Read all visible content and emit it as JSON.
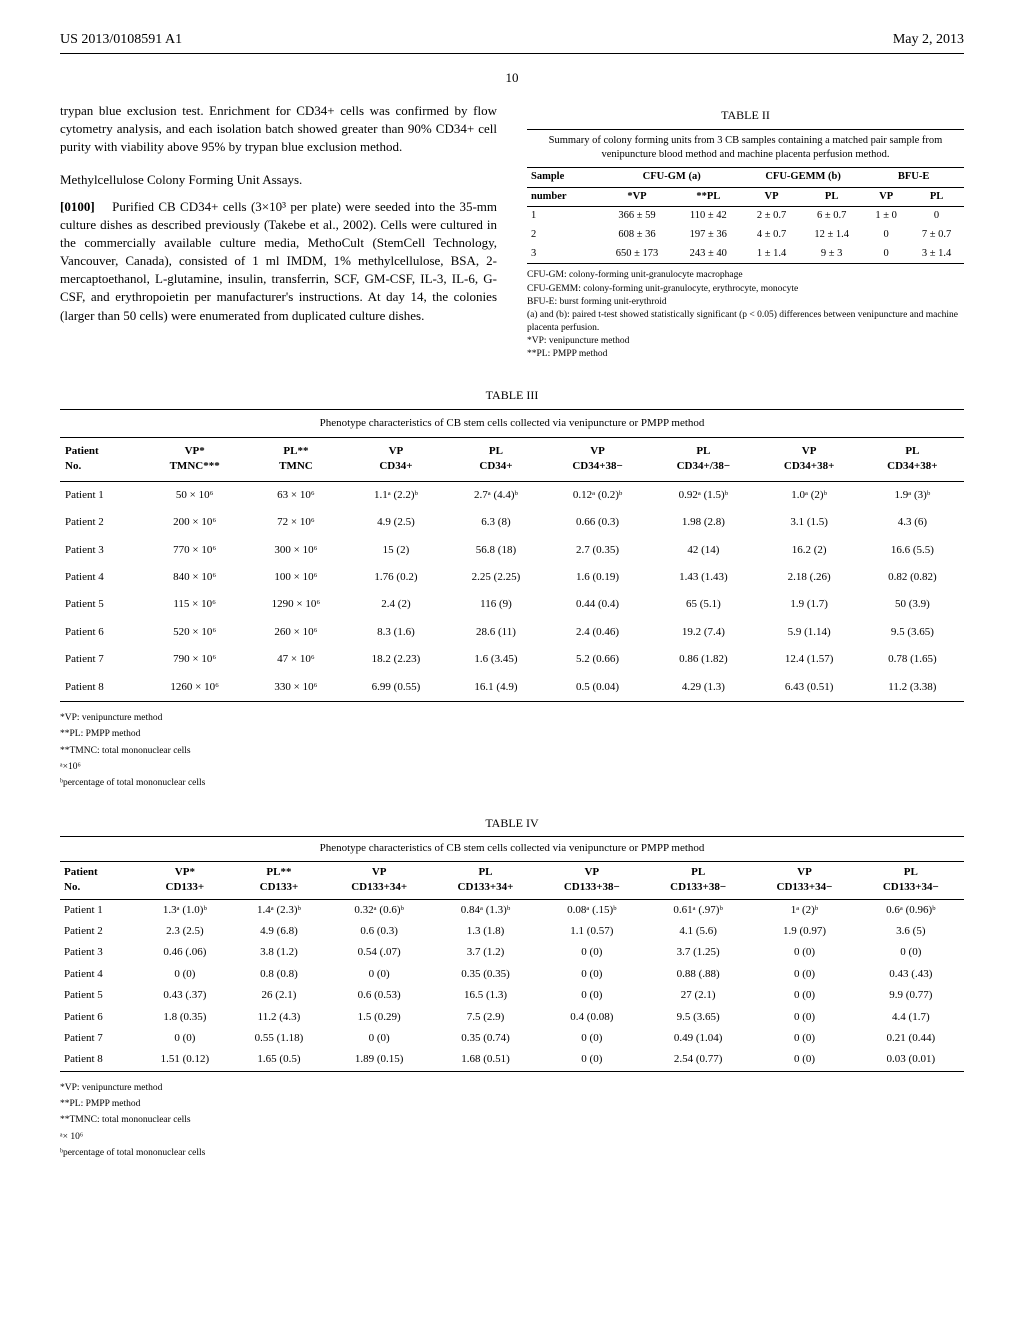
{
  "header": {
    "pub_number": "US 2013/0108591 A1",
    "date": "May 2, 2013"
  },
  "page_number": "10",
  "left_column": {
    "intro_text": "trypan blue exclusion test. Enrichment for CD34+ cells was confirmed by flow cytometry analysis, and each isolation batch showed greater than 90% CD34+ cell purity with viability above 95% by trypan blue exclusion method.",
    "assay_title": "Methylcellulose Colony Forming Unit Assays.",
    "para_num": "[0100]",
    "assay_body": "Purified CB CD34+ cells (3×10³ per plate) were seeded into the 35-mm culture dishes as described previously (Takebe et al., 2002). Cells were cultured in the commercially available culture media, MethoCult (StemCell Technology, Vancouver, Canada), consisted of 1 ml IMDM, 1% methylcellulose, BSA, 2-mercaptoethanol, L-glutamine, insulin, transferrin, SCF, GM-CSF, IL-3, IL-6, G-CSF, and erythropoietin per manufacturer's instructions. At day 14, the colonies (larger than 50 cells) were enumerated from duplicated culture dishes."
  },
  "table2": {
    "title": "TABLE II",
    "caption": "Summary of colony forming units from 3 CB samples containing a matched pair sample from venipuncture blood method and machine placenta perfusion method.",
    "group_headers": [
      "Sample",
      "CFU-GM (a)",
      "CFU-GEMM (b)",
      "BFU-E"
    ],
    "sub_headers": [
      "number",
      "*VP",
      "**PL",
      "VP",
      "PL",
      "VP",
      "PL"
    ],
    "rows": [
      [
        "1",
        "366 ± 59",
        "110 ± 42",
        "2 ± 0.7",
        "6 ± 0.7",
        "1 ± 0",
        "0"
      ],
      [
        "2",
        "608 ± 36",
        "197 ± 36",
        "4 ± 0.7",
        "12 ± 1.4",
        "0",
        "7 ± 0.7"
      ],
      [
        "3",
        "650 ± 173",
        "243 ± 40",
        "1 ± 1.4",
        "9 ± 3",
        "0",
        "3 ± 1.4"
      ]
    ],
    "footnotes": [
      "CFU-GM: colony-forming unit-granulocyte macrophage",
      "CFU-GEMM: colony-forming unit-granulocyte, erythrocyte, monocyte",
      "BFU-E: burst forming unit-erythroid",
      "(a) and (b): paired t-test showed statistically significant (p < 0.05) differences between venipuncture and machine placenta perfusion.",
      "*VP: venipuncture method",
      "**PL: PMPP method"
    ]
  },
  "table3": {
    "title": "TABLE III",
    "caption": "Phenotype characteristics of CB stem cells collected via venipuncture or PMPP method",
    "headers": [
      "Patient\nNo.",
      "VP*\nTMNC***",
      "PL**\nTMNC",
      "VP\nCD34+",
      "PL\nCD34+",
      "VP\nCD34+38−",
      "PL\nCD34+/38−",
      "VP\nCD34+38+",
      "PL\nCD34+38+"
    ],
    "rows": [
      [
        "Patient 1",
        "50 × 10⁶",
        "63 × 10⁶",
        "1.1ᵃ (2.2)ᵇ",
        "2.7ᵃ (4.4)ᵇ",
        "0.12ᵃ (0.2)ᵇ",
        "0.92ᵃ (1.5)ᵇ",
        "1.0ᵃ (2)ᵇ",
        "1.9ᵃ (3)ᵇ"
      ],
      [
        "Patient 2",
        "200 × 10⁶",
        "72 × 10⁶",
        "4.9 (2.5)",
        "6.3 (8)",
        "0.66 (0.3)",
        "1.98 (2.8)",
        "3.1 (1.5)",
        "4.3 (6)"
      ],
      [
        "Patient 3",
        "770 × 10⁶",
        "300 × 10⁶",
        "15 (2)",
        "56.8 (18)",
        "2.7 (0.35)",
        "42 (14)",
        "16.2 (2)",
        "16.6 (5.5)"
      ],
      [
        "Patient 4",
        "840 × 10⁶",
        "100 × 10⁶",
        "1.76 (0.2)",
        "2.25 (2.25)",
        "1.6 (0.19)",
        "1.43 (1.43)",
        "2.18 (.26)",
        "0.82 (0.82)"
      ],
      [
        "Patient 5",
        "115 × 10⁶",
        "1290 × 10⁶",
        "2.4 (2)",
        "116 (9)",
        "0.44 (0.4)",
        "65 (5.1)",
        "1.9 (1.7)",
        "50 (3.9)"
      ],
      [
        "Patient 6",
        "520 × 10⁶",
        "260 × 10⁶",
        "8.3 (1.6)",
        "28.6 (11)",
        "2.4 (0.46)",
        "19.2 (7.4)",
        "5.9 (1.14)",
        "9.5 (3.65)"
      ],
      [
        "Patient 7",
        "790 × 10⁶",
        "47 × 10⁶",
        "18.2 (2.23)",
        "1.6 (3.45)",
        "5.2 (0.66)",
        "0.86 (1.82)",
        "12.4 (1.57)",
        "0.78 (1.65)"
      ],
      [
        "Patient 8",
        "1260 × 10⁶",
        "330 × 10⁶",
        "6.99 (0.55)",
        "16.1 (4.9)",
        "0.5 (0.04)",
        "4.29 (1.3)",
        "6.43 (0.51)",
        "11.2 (3.38)"
      ]
    ],
    "footnotes": [
      "*VP: venipuncture method",
      "**PL: PMPP method",
      "**TMNC: total mononuclear cells",
      "ᵃ×10⁶",
      "ᵇpercentage of total mononuclear cells"
    ]
  },
  "table4": {
    "title": "TABLE IV",
    "caption": "Phenotype characteristics of CB stem cells collected via venipuncture or PMPP method",
    "headers": [
      "Patient\nNo.",
      "VP*\nCD133+",
      "PL**\nCD133+",
      "VP\nCD133+34+",
      "PL\nCD133+34+",
      "VP\nCD133+38−",
      "PL\nCD133+38−",
      "VP\nCD133+34−",
      "PL\nCD133+34−"
    ],
    "rows": [
      [
        "Patient 1",
        "1.3ᵃ (1.0)ᵇ",
        "1.4ᵃ (2.3)ᵇ",
        "0.32ᵃ (0.6)ᵇ",
        "0.84ᵃ (1.3)ᵇ",
        "0.08ᵃ (.15)ᵇ",
        "0.61ᵃ (.97)ᵇ",
        "1ᵃ (2)ᵇ",
        "0.6ᵃ (0.96)ᵇ"
      ],
      [
        "Patient 2",
        "2.3 (2.5)",
        "4.9 (6.8)",
        "0.6 (0.3)",
        "1.3 (1.8)",
        "1.1 (0.57)",
        "4.1 (5.6)",
        "1.9 (0.97)",
        "3.6 (5)"
      ],
      [
        "Patient 3",
        "0.46 (.06)",
        "3.8 (1.2)",
        "0.54 (.07)",
        "3.7 (1.2)",
        "0 (0)",
        "3.7 (1.25)",
        "0 (0)",
        "0 (0)"
      ],
      [
        "Patient 4",
        "0 (0)",
        "0.8 (0.8)",
        "0 (0)",
        "0.35 (0.35)",
        "0 (0)",
        "0.88 (.88)",
        "0 (0)",
        "0.43 (.43)"
      ],
      [
        "Patient 5",
        "0.43 (.37)",
        "26 (2.1)",
        "0.6 (0.53)",
        "16.5 (1.3)",
        "0 (0)",
        "27 (2.1)",
        "0 (0)",
        "9.9 (0.77)"
      ],
      [
        "Patient 6",
        "1.8 (0.35)",
        "11.2 (4.3)",
        "1.5 (0.29)",
        "7.5 (2.9)",
        "0.4 (0.08)",
        "9.5 (3.65)",
        "0 (0)",
        "4.4 (1.7)"
      ],
      [
        "Patient 7",
        "0 (0)",
        "0.55 (1.18)",
        "0 (0)",
        "0.35 (0.74)",
        "0 (0)",
        "0.49 (1.04)",
        "0 (0)",
        "0.21 (0.44)"
      ],
      [
        "Patient 8",
        "1.51 (0.12)",
        "1.65 (0.5)",
        "1.89 (0.15)",
        "1.68 (0.51)",
        "0 (0)",
        "2.54 (0.77)",
        "0 (0)",
        "0.03 (0.01)"
      ]
    ],
    "footnotes": [
      "*VP: venipuncture method",
      "**PL: PMPP method",
      "**TMNC: total mononuclear cells",
      "ᵃ× 10⁶",
      "ᵇpercentage of total mononuclear cells"
    ]
  }
}
